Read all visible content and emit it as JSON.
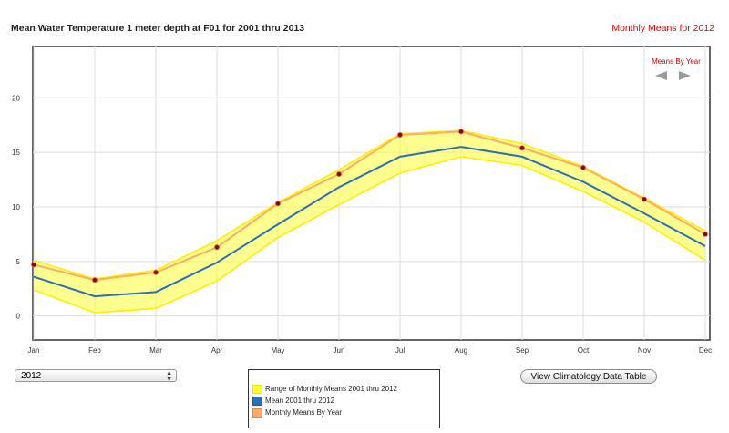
{
  "header": {
    "title": "Mean Water Temperature 1 meter depth at F01 for 2001 thru 2013",
    "subtitle": "Monthly Means for 2012"
  },
  "nav": {
    "label": "Means By Year",
    "prev_icon": "left-arrow-icon",
    "next_icon": "right-arrow-icon"
  },
  "year_select": {
    "value": "2012"
  },
  "legend": {
    "items": [
      {
        "label": "Range of Monthly Means 2001 thru 2012",
        "color": "#ffff33"
      },
      {
        "label": "Mean 2001 thru 2012",
        "color": "#2a6fb8"
      },
      {
        "label": "Monthly Means By Year",
        "color": "#ffaa66"
      }
    ]
  },
  "buttons": {
    "table": "View Climatology Data Table"
  },
  "chart_data": {
    "type": "area",
    "categories": [
      "Jan",
      "Feb",
      "Mar",
      "Apr",
      "May",
      "Jun",
      "Jul",
      "Aug",
      "Sep",
      "Oct",
      "Nov",
      "Dec"
    ],
    "y_ticks": [
      "0",
      "5",
      "10",
      "15",
      "20"
    ],
    "ylim": [
      -2.2,
      24.7
    ],
    "grid": true,
    "series": [
      {
        "name": "Range of Monthly Means 2001 thru 2012",
        "type": "range",
        "low": [
          2.4,
          0.3,
          0.7,
          3.2,
          7.2,
          10.2,
          13.1,
          14.6,
          13.8,
          11.4,
          8.6,
          5.1
        ],
        "high": [
          5.1,
          3.4,
          4.2,
          6.9,
          10.4,
          13.4,
          16.7,
          17.0,
          15.8,
          13.7,
          10.8,
          7.8
        ],
        "color": "#ffff33"
      },
      {
        "name": "Mean 2001 thru 2012",
        "type": "line",
        "values": [
          3.6,
          1.8,
          2.2,
          4.9,
          8.4,
          11.8,
          14.6,
          15.5,
          14.6,
          12.3,
          9.4,
          6.4
        ],
        "color": "#2a6fb8"
      },
      {
        "name": "Monthly Means By Year",
        "type": "line",
        "values": [
          4.7,
          3.3,
          4.0,
          6.3,
          10.3,
          13.0,
          16.6,
          16.9,
          15.4,
          13.6,
          10.7,
          7.5
        ],
        "color": "#ffaa66"
      }
    ]
  }
}
